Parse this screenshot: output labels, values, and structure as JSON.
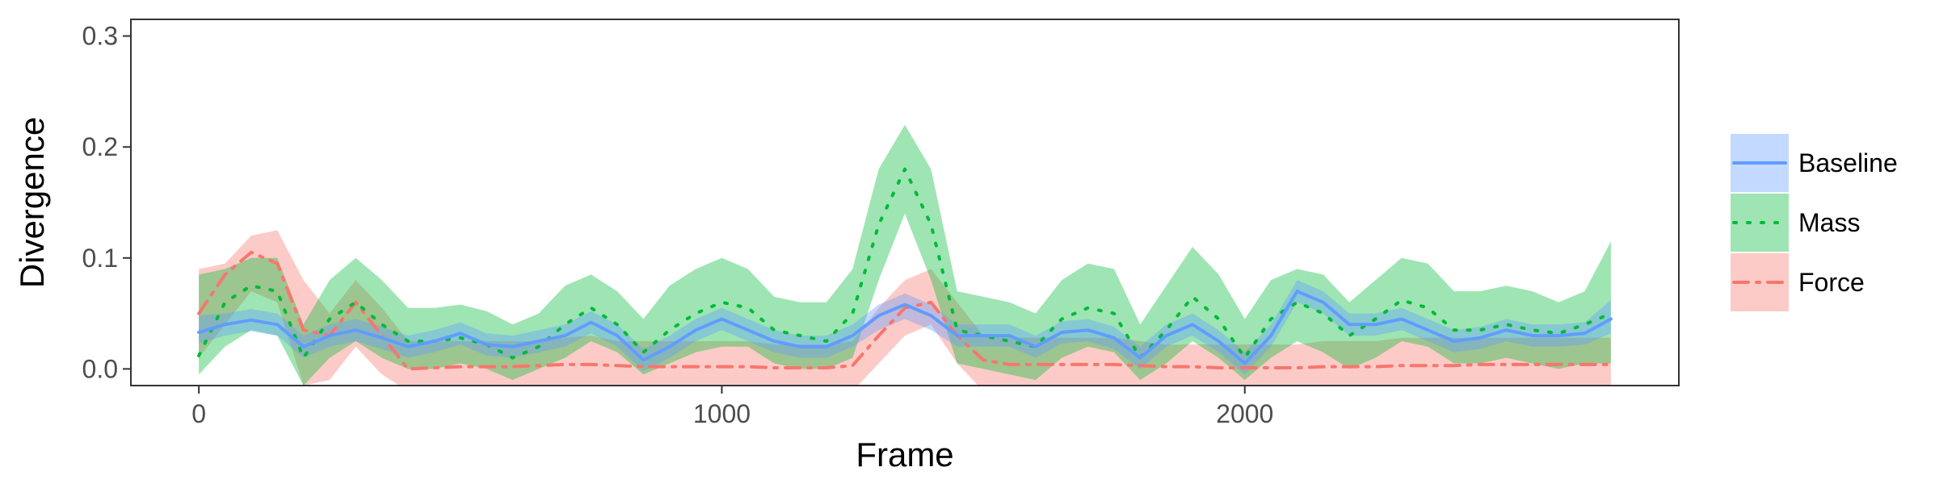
{
  "chart_data": {
    "type": "line",
    "xlabel": "Frame",
    "ylabel": "Divergence",
    "xlim": [
      -130,
      2830
    ],
    "ylim": [
      -0.015,
      0.315
    ],
    "x_ticks": [
      0,
      1000,
      2000
    ],
    "y_ticks": [
      0.0,
      0.1,
      0.2,
      0.3
    ],
    "x_tick_labels": [
      "0",
      "1000",
      "2000"
    ],
    "y_tick_labels": [
      "0.0",
      "0.1",
      "0.2",
      "0.3"
    ],
    "grid": false,
    "legend_position": "right",
    "x": [
      0,
      50,
      100,
      150,
      200,
      250,
      300,
      350,
      400,
      450,
      500,
      550,
      600,
      650,
      700,
      750,
      800,
      850,
      900,
      950,
      1000,
      1050,
      1100,
      1150,
      1200,
      1250,
      1300,
      1350,
      1400,
      1450,
      1500,
      1550,
      1600,
      1650,
      1700,
      1750,
      1800,
      1850,
      1900,
      1950,
      2000,
      2050,
      2100,
      2150,
      2200,
      2250,
      2300,
      2350,
      2400,
      2450,
      2500,
      2550,
      2600,
      2650,
      2700
    ],
    "series": [
      {
        "name": "Baseline",
        "color": "#619cff",
        "linestyle": "solid",
        "values": [
          0.033,
          0.04,
          0.044,
          0.04,
          0.02,
          0.03,
          0.035,
          0.028,
          0.02,
          0.025,
          0.032,
          0.022,
          0.02,
          0.025,
          0.03,
          0.042,
          0.03,
          0.008,
          0.02,
          0.035,
          0.045,
          0.035,
          0.025,
          0.02,
          0.02,
          0.03,
          0.048,
          0.058,
          0.048,
          0.03,
          0.03,
          0.03,
          0.02,
          0.033,
          0.035,
          0.028,
          0.01,
          0.03,
          0.04,
          0.025,
          0.005,
          0.03,
          0.07,
          0.06,
          0.04,
          0.04,
          0.045,
          0.035,
          0.025,
          0.028,
          0.035,
          0.03,
          0.03,
          0.032,
          0.045
        ],
        "lower": [
          0.023,
          0.03,
          0.034,
          0.03,
          0.01,
          0.02,
          0.025,
          0.018,
          0.01,
          0.015,
          0.022,
          0.012,
          0.01,
          0.015,
          0.02,
          0.032,
          0.02,
          -0.002,
          0.01,
          0.025,
          0.035,
          0.025,
          0.015,
          0.01,
          0.01,
          0.02,
          0.035,
          0.045,
          0.035,
          0.02,
          0.02,
          0.02,
          0.01,
          0.023,
          0.025,
          0.018,
          0.0,
          0.02,
          0.03,
          0.015,
          -0.005,
          0.02,
          0.06,
          0.05,
          0.03,
          0.03,
          0.035,
          0.025,
          0.015,
          0.018,
          0.025,
          0.02,
          0.02,
          0.022,
          0.032
        ],
        "upper": [
          0.048,
          0.05,
          0.054,
          0.05,
          0.03,
          0.04,
          0.045,
          0.038,
          0.03,
          0.035,
          0.042,
          0.032,
          0.03,
          0.035,
          0.04,
          0.052,
          0.04,
          0.018,
          0.03,
          0.045,
          0.055,
          0.045,
          0.035,
          0.03,
          0.03,
          0.04,
          0.058,
          0.068,
          0.058,
          0.04,
          0.04,
          0.04,
          0.03,
          0.043,
          0.045,
          0.038,
          0.02,
          0.04,
          0.05,
          0.035,
          0.015,
          0.04,
          0.08,
          0.07,
          0.05,
          0.05,
          0.055,
          0.045,
          0.035,
          0.038,
          0.045,
          0.04,
          0.04,
          0.042,
          0.062
        ]
      },
      {
        "name": "Mass",
        "color": "#00ba38",
        "linestyle": "dotted",
        "values": [
          0.012,
          0.06,
          0.075,
          0.07,
          0.01,
          0.045,
          0.06,
          0.04,
          0.025,
          0.025,
          0.028,
          0.022,
          0.01,
          0.02,
          0.04,
          0.055,
          0.04,
          0.015,
          0.035,
          0.05,
          0.06,
          0.055,
          0.035,
          0.03,
          0.025,
          0.05,
          0.13,
          0.18,
          0.13,
          0.035,
          0.03,
          0.025,
          0.02,
          0.045,
          0.055,
          0.05,
          0.01,
          0.035,
          0.065,
          0.045,
          0.01,
          0.045,
          0.06,
          0.05,
          0.03,
          0.045,
          0.062,
          0.055,
          0.035,
          0.035,
          0.04,
          0.035,
          0.032,
          0.04,
          0.05
        ],
        "lower": [
          -0.005,
          0.02,
          0.035,
          0.03,
          -0.015,
          0.01,
          0.025,
          0.01,
          0.0,
          0.0,
          0.005,
          0.0,
          -0.01,
          0.0,
          0.01,
          0.025,
          0.015,
          -0.005,
          0.005,
          0.015,
          0.02,
          0.02,
          0.005,
          0.0,
          0.0,
          0.01,
          0.08,
          0.14,
          0.08,
          0.005,
          0.0,
          -0.005,
          -0.01,
          0.01,
          0.02,
          0.015,
          -0.01,
          0.005,
          0.025,
          0.01,
          -0.01,
          0.01,
          0.025,
          0.015,
          0.0,
          0.01,
          0.025,
          0.02,
          0.005,
          0.005,
          0.01,
          0.005,
          0.0,
          0.005,
          0.005
        ],
        "upper": [
          0.085,
          0.09,
          0.1,
          0.1,
          0.04,
          0.08,
          0.1,
          0.08,
          0.055,
          0.055,
          0.058,
          0.052,
          0.04,
          0.05,
          0.075,
          0.085,
          0.07,
          0.045,
          0.075,
          0.09,
          0.1,
          0.09,
          0.065,
          0.06,
          0.06,
          0.09,
          0.18,
          0.22,
          0.18,
          0.07,
          0.065,
          0.06,
          0.05,
          0.08,
          0.095,
          0.09,
          0.04,
          0.075,
          0.11,
          0.085,
          0.045,
          0.08,
          0.09,
          0.085,
          0.06,
          0.08,
          0.1,
          0.095,
          0.07,
          0.07,
          0.075,
          0.07,
          0.06,
          0.07,
          0.115
        ]
      },
      {
        "name": "Force",
        "color": "#f8766d",
        "linestyle": "dashdot",
        "values": [
          0.05,
          0.085,
          0.105,
          0.095,
          0.035,
          0.03,
          0.06,
          0.03,
          0.0,
          0.001,
          0.002,
          0.002,
          0.002,
          0.003,
          0.004,
          0.004,
          0.003,
          0.002,
          0.002,
          0.002,
          0.002,
          0.002,
          0.001,
          0.001,
          0.001,
          0.003,
          0.03,
          0.055,
          0.06,
          0.03,
          0.008,
          0.004,
          0.004,
          0.004,
          0.004,
          0.004,
          0.003,
          0.002,
          0.002,
          0.001,
          0.001,
          0.001,
          0.001,
          0.002,
          0.002,
          0.002,
          0.003,
          0.003,
          0.003,
          0.004,
          0.004,
          0.004,
          0.004,
          0.004,
          0.004
        ],
        "lower": [
          0.01,
          0.04,
          0.07,
          0.06,
          -0.015,
          -0.01,
          0.02,
          -0.005,
          -0.02,
          -0.02,
          -0.02,
          -0.02,
          -0.02,
          -0.02,
          -0.02,
          -0.02,
          -0.02,
          -0.02,
          -0.02,
          -0.02,
          -0.02,
          -0.02,
          -0.02,
          -0.02,
          -0.02,
          -0.02,
          0.005,
          0.03,
          0.04,
          0.005,
          -0.02,
          -0.02,
          -0.02,
          -0.02,
          -0.02,
          -0.02,
          -0.02,
          -0.02,
          -0.02,
          -0.02,
          -0.02,
          -0.02,
          -0.02,
          -0.02,
          -0.02,
          -0.02,
          -0.02,
          -0.02,
          -0.02,
          -0.02,
          -0.02,
          -0.02,
          -0.02,
          -0.02,
          -0.02
        ],
        "upper": [
          0.09,
          0.095,
          0.12,
          0.125,
          0.08,
          0.05,
          0.08,
          0.055,
          0.025,
          0.025,
          0.025,
          0.025,
          0.025,
          0.025,
          0.028,
          0.03,
          0.025,
          0.025,
          0.025,
          0.025,
          0.025,
          0.025,
          0.022,
          0.022,
          0.022,
          0.025,
          0.055,
          0.08,
          0.09,
          0.06,
          0.03,
          0.028,
          0.028,
          0.028,
          0.028,
          0.028,
          0.025,
          0.022,
          0.022,
          0.022,
          0.022,
          0.022,
          0.022,
          0.025,
          0.025,
          0.025,
          0.028,
          0.028,
          0.028,
          0.028,
          0.028,
          0.028,
          0.028,
          0.028,
          0.028
        ]
      }
    ]
  }
}
